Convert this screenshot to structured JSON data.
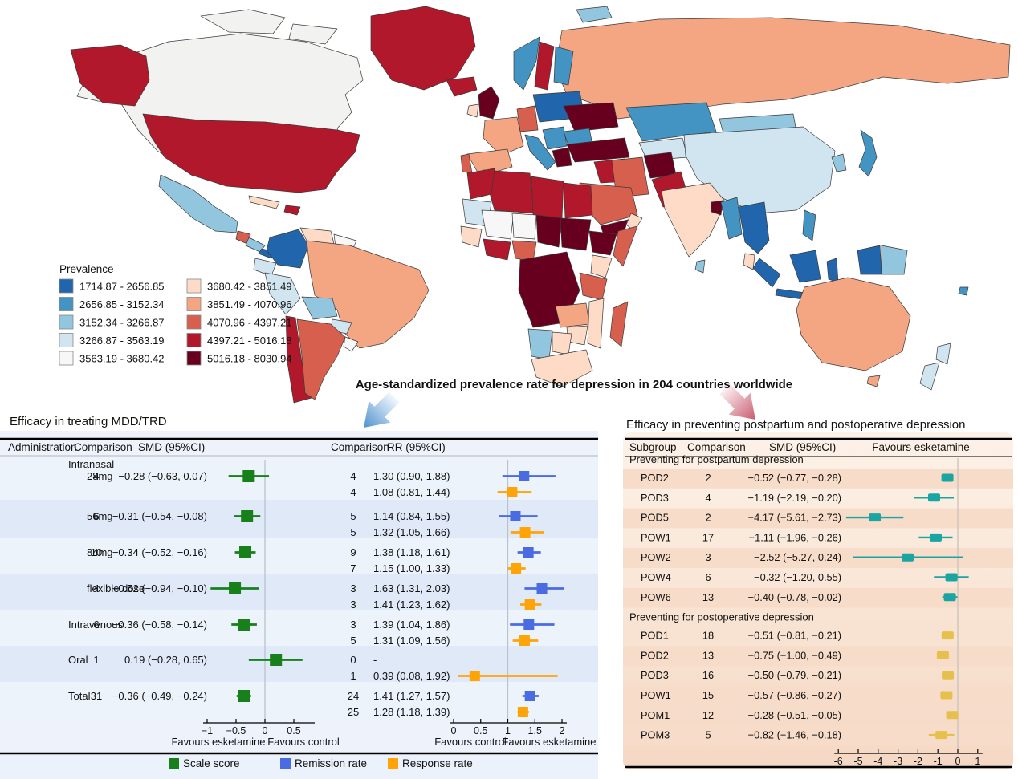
{
  "figure": {
    "map_title": "Age-standardized prevalence rate for depression in 204 countries worldwide"
  },
  "chart_data": [
    {
      "type": "choropleth",
      "title": "Age-standardized prevalence rate for depression in 204 countries worldwide",
      "legend_title": "Prevalence",
      "classes": [
        {
          "range": "1714.87 - 2656.85",
          "color": "#2166ac"
        },
        {
          "range": "2656.85 - 3152.34",
          "color": "#4393c3"
        },
        {
          "range": "3152.34 - 3266.87",
          "color": "#92c5de"
        },
        {
          "range": "3266.87 - 3563.19",
          "color": "#d1e5f0"
        },
        {
          "range": "3563.19 - 3680.42",
          "color": "#f7f7f7"
        },
        {
          "range": "3680.42 - 3851.49",
          "color": "#fddbc7"
        },
        {
          "range": "3851.49 - 4070.96",
          "color": "#f4a582"
        },
        {
          "range": "4070.96 - 4397.21",
          "color": "#d6604d"
        },
        {
          "range": "4397.21 - 5016.18",
          "color": "#b2182b"
        },
        {
          "range": "5016.18 - 8030.94",
          "color": "#67001f"
        }
      ],
      "regions": {
        "russia": "#f4a582",
        "canada": "#f2f2f0",
        "arctic1": "#f2f2f0",
        "arctic2": "#f2f2f0",
        "alaska": "#b2182b",
        "greenland": "#b2182b",
        "iceland": "#b2182b",
        "usa": "#b2182b",
        "mexico": "#92c5de",
        "guatemala": "#d6604d",
        "centralamerica": "#92c5de",
        "panama": "#2166ac",
        "cuba": "#fddbc7",
        "hispaniola": "#b2182b",
        "colombia": "#2166ac",
        "venezuela": "#fddbc7",
        "guyanas": "#f7f7f7",
        "ecuador": "#d1e5f0",
        "peru": "#d1e5f0",
        "brazil": "#f4a582",
        "bolivia": "#92c5de",
        "paraguay": "#d1e5f0",
        "chile": "#b2182b",
        "argentina": "#d6604d",
        "uruguay": "#f7f7f7",
        "uk": "#67001f",
        "ireland": "#fddbc7",
        "norway": "#4393c3",
        "sweden": "#b2182b",
        "finland": "#4393c3",
        "baltic_poland": "#2166ac",
        "germany": "#d6604d",
        "france": "#f4a582",
        "spain": "#f4a582",
        "portugal": "#d6604d",
        "italy": "#4393c3",
        "balkans": "#4393c3",
        "greece": "#67001f",
        "ukraine": "#67001f",
        "romania": "#4393c3",
        "svalbard": "#92c5de",
        "kazakhstan": "#4393c3",
        "central_asia": "#d1e5f0",
        "mongolia": "#92c5de",
        "china": "#d1e5f0",
        "korea": "#92c5de",
        "japan": "#4393c3",
        "turkey": "#67001f",
        "syria_iraq": "#b2182b",
        "iran": "#d6604d",
        "afghanistan": "#67001f",
        "pakistan": "#b2182b",
        "saudi": "#d6604d",
        "yemen": "#67001f",
        "oman": "#fddbc7",
        "india": "#fddbc7",
        "bangladesh": "#67001f",
        "srilanka": "#92c5de",
        "myanmar": "#4393c3",
        "indochina": "#2166ac",
        "malaysia": "#fddbc7",
        "philippines": "#4393c3",
        "sumatra": "#2166ac",
        "java": "#2166ac",
        "borneo": "#2166ac",
        "sulawesi": "#2166ac",
        "newguinea_west": "#2166ac",
        "newguinea_east": "#92c5de",
        "fiji": "#4393c3",
        "morocco": "#b2182b",
        "algeria": "#b2182b",
        "libya": "#b2182b",
        "egypt": "#b2182b",
        "mauritania": "#d1e5f0",
        "mali": "#f7f7f7",
        "niger": "#f7f7f7",
        "chad": "#67001f",
        "sudan": "#67001f",
        "senegal_guinea": "#fddbc7",
        "ghana": "#b2182b",
        "nigeria": "#d6604d",
        "ethiopia": "#67001f",
        "somalia": "#d6604d",
        "central_africa": "#67001f",
        "kenya": "#fddbc7",
        "tanzania": "#d6604d",
        "zambia": "#f4a582",
        "mozambique": "#fddbc7",
        "zimbabwe": "#fddbc7",
        "namibia": "#92c5de",
        "botswana": "#fddbc7",
        "south_africa": "#fddbc7",
        "madagascar": "#d6604d",
        "australia": "#f4a582",
        "tasmania": "#f4a582",
        "nz_north": "#d1e5f0",
        "nz_south": "#d1e5f0"
      }
    },
    {
      "type": "forest",
      "title": "Efficacy in treating MDD/TRD",
      "smd_header": [
        "Administration",
        "Comparison",
        "SMD (95%CI)"
      ],
      "rr_header": [
        "Comparison",
        "RR (95%CI)"
      ],
      "smd_axis": {
        "ticks": [
          [
            -1,
            "−1"
          ],
          [
            -0.5,
            "−0.5"
          ],
          [
            0,
            "0"
          ],
          [
            0.5,
            "0.5"
          ]
        ],
        "left_label": "Favours esketamine",
        "right_label": "Favours control"
      },
      "rr_axis": {
        "ticks": [
          [
            0,
            "0"
          ],
          [
            0.5,
            "0.5"
          ],
          [
            1,
            "1"
          ],
          [
            1.5,
            "1.5"
          ],
          [
            2,
            "2"
          ]
        ],
        "left_label": "Favours control",
        "right_label": "Favours esketamine"
      },
      "series_legend": [
        {
          "key": "scale",
          "name": "Scale score",
          "color": "#17801a"
        },
        {
          "key": "remission",
          "name": "Remission rate",
          "color": "#4a6be2"
        },
        {
          "key": "response",
          "name": "Response rate",
          "color": "#ffa408"
        }
      ],
      "rows": [
        {
          "type": "header",
          "label": "Intranasal"
        },
        {
          "type": "row",
          "label": "28mg",
          "indent": true,
          "n": "4",
          "smd_text": "−0.28 (−0.63, 0.07)",
          "smd": [
            -0.28,
            -0.63,
            0.07
          ],
          "rr": [
            {
              "n": "4",
              "text": "1.30 (0.90, 1.88)",
              "v": [
                1.3,
                0.9,
                1.88
              ],
              "series": "remission"
            },
            {
              "n": "4",
              "text": "1.08 (0.81, 1.44)",
              "v": [
                1.08,
                0.81,
                1.44
              ],
              "series": "response"
            }
          ]
        },
        {
          "type": "row",
          "label": "56mg",
          "indent": true,
          "n": "6",
          "smd_text": "−0.31 (−0.54, −0.08)",
          "smd": [
            -0.31,
            -0.54,
            -0.08
          ],
          "rr": [
            {
              "n": "5",
              "text": "1.14 (0.84, 1.55)",
              "v": [
                1.14,
                0.84,
                1.55
              ],
              "series": "remission"
            },
            {
              "n": "5",
              "text": "1.32 (1.05, 1.66)",
              "v": [
                1.32,
                1.05,
                1.66
              ],
              "series": "response"
            }
          ]
        },
        {
          "type": "row",
          "label": "84mg",
          "indent": true,
          "n": "10",
          "smd_text": "−0.34 (−0.52, −0.16)",
          "smd": [
            -0.34,
            -0.52,
            -0.16
          ],
          "rr": [
            {
              "n": "9",
              "text": "1.38 (1.18, 1.61)",
              "v": [
                1.38,
                1.18,
                1.61
              ],
              "series": "remission"
            },
            {
              "n": "7",
              "text": "1.15 (1.00, 1.33)",
              "v": [
                1.15,
                1.0,
                1.33
              ],
              "series": "response"
            }
          ]
        },
        {
          "type": "row",
          "label": "flexible dose",
          "indent": true,
          "n": "4",
          "smd_text": "−0.52 (−0.94, −0.10)",
          "smd": [
            -0.52,
            -0.94,
            -0.1
          ],
          "rr": [
            {
              "n": "3",
              "text": "1.63 (1.31, 2.03)",
              "v": [
                1.63,
                1.31,
                2.03
              ],
              "series": "remission"
            },
            {
              "n": "3",
              "text": "1.41 (1.23, 1.62)",
              "v": [
                1.41,
                1.23,
                1.62
              ],
              "series": "response"
            }
          ]
        },
        {
          "type": "row",
          "label": "Intravenous",
          "indent": false,
          "n": "6",
          "smd_text": "−0.36 (−0.58, −0.14)",
          "smd": [
            -0.36,
            -0.58,
            -0.14
          ],
          "rr": [
            {
              "n": "3",
              "text": "1.39 (1.04, 1.86)",
              "v": [
                1.39,
                1.04,
                1.86
              ],
              "series": "remission"
            },
            {
              "n": "5",
              "text": "1.31 (1.09, 1.56)",
              "v": [
                1.31,
                1.09,
                1.56
              ],
              "series": "response"
            }
          ]
        },
        {
          "type": "row",
          "label": "Oral",
          "indent": false,
          "n": "1",
          "smd_text": "0.19 (−0.28, 0.65)",
          "smd": [
            0.19,
            -0.28,
            0.65
          ],
          "rr": [
            {
              "n": "0",
              "text": "-",
              "v": null,
              "series": "remission"
            },
            {
              "n": "1",
              "text": "0.39 (0.08, 1.92)",
              "v": [
                0.39,
                0.08,
                1.92
              ],
              "series": "response"
            }
          ]
        },
        {
          "type": "row",
          "label": "Total",
          "indent": false,
          "n": "31",
          "smd_text": "−0.36 (−0.49, −0.24)",
          "smd": [
            -0.36,
            -0.49,
            -0.24
          ],
          "rr": [
            {
              "n": "24",
              "text": "1.41 (1.27, 1.57)",
              "v": [
                1.41,
                1.27,
                1.57
              ],
              "series": "remission"
            },
            {
              "n": "25",
              "text": "1.28 (1.18, 1.39)",
              "v": [
                1.28,
                1.18,
                1.39
              ],
              "series": "response"
            }
          ]
        }
      ]
    },
    {
      "type": "forest",
      "title": "Efficacy in preventing postpartum and postoperative depression",
      "header": [
        "Subgroup",
        "Comparison",
        "SMD (95%CI)",
        "Favours esketamine"
      ],
      "axis": {
        "ticks": [
          [
            -6,
            "-6"
          ],
          [
            -5,
            "-5"
          ],
          [
            -4,
            "-4"
          ],
          [
            -3,
            "-3"
          ],
          [
            -2,
            "-2"
          ],
          [
            -1,
            "-1"
          ],
          [
            0,
            "0"
          ],
          [
            1,
            "1"
          ]
        ]
      },
      "sections": [
        {
          "label": "Preventing for postpartum depression",
          "color": "#1ba5a2",
          "rows": [
            {
              "label": "POD2",
              "n": "2",
              "smd_text": "−0.52 (−0.77, −0.28)",
              "smd": [
                -0.52,
                -0.77,
                -0.28
              ]
            },
            {
              "label": "POD3",
              "n": "4",
              "smd_text": "−1.19 (−2.19, −0.20)",
              "smd": [
                -1.19,
                -2.19,
                -0.2
              ]
            },
            {
              "label": "POD5",
              "n": "2",
              "smd_text": "−4.17 (−5.61, −2.73)",
              "smd": [
                -4.17,
                -5.61,
                -2.73
              ]
            },
            {
              "label": "POW1",
              "n": "17",
              "smd_text": "−1.11 (−1.96, −0.26)",
              "smd": [
                -1.11,
                -1.96,
                -0.26
              ]
            },
            {
              "label": "POW2",
              "n": "3",
              "smd_text": "−2.52 (−5.27, 0.24)",
              "smd": [
                -2.52,
                -5.27,
                0.24
              ]
            },
            {
              "label": "POW4",
              "n": "6",
              "smd_text": "−0.32 (−1.20, 0.55)",
              "smd": [
                -0.32,
                -1.2,
                0.55
              ]
            },
            {
              "label": "POW6",
              "n": "13",
              "smd_text": "−0.40 (−0.78, −0.02)",
              "smd": [
                -0.4,
                -0.78,
                -0.02
              ]
            }
          ]
        },
        {
          "label": "Preventing for postoperative depression",
          "color": "#e5c04c",
          "rows": [
            {
              "label": "POD1",
              "n": "18",
              "smd_text": "−0.51 (−0.81, −0.21)",
              "smd": [
                -0.51,
                -0.81,
                -0.21
              ]
            },
            {
              "label": "POD2",
              "n": "13",
              "smd_text": "−0.75 (−1.00, −0.49)",
              "smd": [
                -0.75,
                -1.0,
                -0.49
              ]
            },
            {
              "label": "POD3",
              "n": "16",
              "smd_text": "−0.50 (−0.79, −0.21)",
              "smd": [
                -0.5,
                -0.79,
                -0.21
              ]
            },
            {
              "label": "POW1",
              "n": "15",
              "smd_text": "−0.57 (−0.86, −0.27)",
              "smd": [
                -0.57,
                -0.86,
                -0.27
              ]
            },
            {
              "label": "POM1",
              "n": "12",
              "smd_text": "−0.28 (−0.51, −0.05)",
              "smd": [
                -0.28,
                -0.51,
                -0.05
              ]
            },
            {
              "label": "POM3",
              "n": "5",
              "smd_text": "−0.82 (−1.46, −0.18)",
              "smd": [
                -0.82,
                -1.46,
                -0.18
              ]
            }
          ]
        }
      ]
    }
  ]
}
